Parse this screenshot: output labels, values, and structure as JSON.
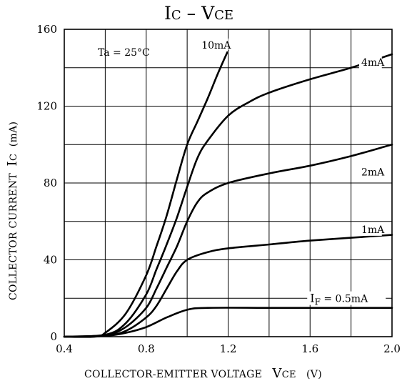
{
  "title": {
    "main": "I",
    "sub": "C",
    "dash": " – ",
    "main2": "V",
    "sub2": "CE"
  },
  "ylabel": {
    "text": "COLLECTOR CURRENT",
    "sym": "I",
    "sub": "C",
    "unit": "(mA)"
  },
  "xlabel": {
    "text": "COLLECTOR-EMITTER VOLTAGE",
    "sym": "V",
    "sub": "CE",
    "unit": "(V)"
  },
  "annotation": "Ta = 25°C",
  "chart_data": {
    "type": "line",
    "title": "IC – VCE",
    "xlabel": "COLLECTOR-EMITTER VOLTAGE VCE (V)",
    "ylabel": "COLLECTOR CURRENT IC (mA)",
    "xlim": [
      0.4,
      2.0
    ],
    "ylim": [
      0,
      160
    ],
    "xticks": [
      0.4,
      0.8,
      1.2,
      1.6,
      2.0
    ],
    "xtick_labels": [
      "0.4",
      "0.8",
      "1.2",
      "1.6",
      "2.0"
    ],
    "yticks": [
      0,
      40,
      80,
      120,
      160
    ],
    "ytick_labels": [
      "0",
      "40",
      "80",
      "120",
      "160"
    ],
    "grid": true,
    "series": [
      {
        "name": "IF=0.5mA",
        "label": "I_F=0.5mA",
        "x": [
          0.4,
          0.6,
          0.7,
          0.8,
          0.9,
          1.0,
          1.1,
          1.4,
          1.7,
          2.0
        ],
        "y": [
          0,
          0.5,
          2,
          5,
          10,
          14,
          15,
          15,
          15,
          15
        ]
      },
      {
        "name": "1mA",
        "label": "1mA",
        "x": [
          0.4,
          0.6,
          0.7,
          0.8,
          0.85,
          0.9,
          0.95,
          1.0,
          1.1,
          1.2,
          1.4,
          1.6,
          1.8,
          2.0
        ],
        "y": [
          0,
          0.5,
          3,
          10,
          16,
          25,
          34,
          40,
          44,
          46,
          48,
          50,
          51.5,
          53
        ]
      },
      {
        "name": "2mA",
        "label": "2mA",
        "x": [
          0.4,
          0.6,
          0.7,
          0.8,
          0.85,
          0.9,
          0.95,
          1.0,
          1.05,
          1.1,
          1.2,
          1.4,
          1.6,
          1.8,
          2.0
        ],
        "y": [
          0,
          0.8,
          5,
          15,
          25,
          36,
          47,
          60,
          70,
          75,
          80,
          85,
          89,
          94,
          100
        ]
      },
      {
        "name": "4mA",
        "label": "4mA",
        "x": [
          0.4,
          0.6,
          0.7,
          0.8,
          0.85,
          0.9,
          0.95,
          1.0,
          1.05,
          1.1,
          1.2,
          1.3,
          1.4,
          1.6,
          1.8,
          2.0
        ],
        "y": [
          0,
          1,
          7,
          22,
          35,
          48,
          62,
          78,
          93,
          102,
          115,
          122,
          127,
          134,
          140,
          147
        ]
      },
      {
        "name": "10mA",
        "label": "10mA",
        "x": [
          0.4,
          0.55,
          0.6,
          0.7,
          0.8,
          0.85,
          0.9,
          0.95,
          1.0,
          1.05,
          1.1,
          1.15,
          1.2
        ],
        "y": [
          0,
          0,
          2,
          12,
          32,
          47,
          63,
          82,
          100,
          112,
          124,
          137,
          149
        ]
      }
    ]
  }
}
